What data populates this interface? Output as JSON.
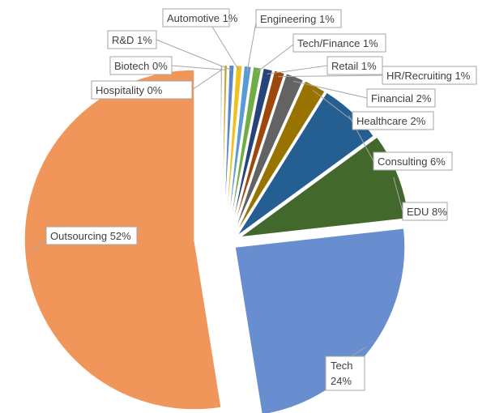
{
  "chart_data": {
    "type": "pie",
    "exploded": true,
    "legend": "none",
    "title": "",
    "slices": [
      {
        "name": "Outsourcing",
        "value": 52,
        "label": "Outsourcing 52%",
        "color": "#F0965A"
      },
      {
        "name": "Hospitality",
        "value": 0.2,
        "label": "Hospitality 0%",
        "color": "#9E9E9E"
      },
      {
        "name": "Biotech",
        "value": 0.3,
        "label": "Biotech 0%",
        "color": "#C9A227"
      },
      {
        "name": "R&D",
        "value": 0.5,
        "label": "R&D 1%",
        "color": "#5A87C9"
      },
      {
        "name": "Automotive",
        "value": 0.6,
        "label": "Automotive 1%",
        "color": "#F2C01E"
      },
      {
        "name": "Engineering",
        "value": 0.7,
        "label": "Engineering 1%",
        "color": "#5B9BD5"
      },
      {
        "name": "Tech/Finance",
        "value": 0.8,
        "label": "Tech/Finance 1%",
        "color": "#70AD47"
      },
      {
        "name": "Retail",
        "value": 0.9,
        "label": "Retail 1%",
        "color": "#264478"
      },
      {
        "name": "HR/Recruiting",
        "value": 1.0,
        "label": "HR/Recruiting 1%",
        "color": "#9E480E"
      },
      {
        "name": "Financial",
        "value": 1.7,
        "label": "Financial 2%",
        "color": "#636363"
      },
      {
        "name": "Healthcare",
        "value": 2.1,
        "label": "Healthcare 2%",
        "color": "#997300"
      },
      {
        "name": "Consulting",
        "value": 6.0,
        "label": "Consulting 6%",
        "color": "#255E91"
      },
      {
        "name": "EDU",
        "value": 8.2,
        "label": "EDU 8%",
        "color": "#43682B"
      },
      {
        "name": "Tech",
        "value": 24.0,
        "label": "Tech 24%",
        "color": "#698ED0"
      }
    ]
  }
}
